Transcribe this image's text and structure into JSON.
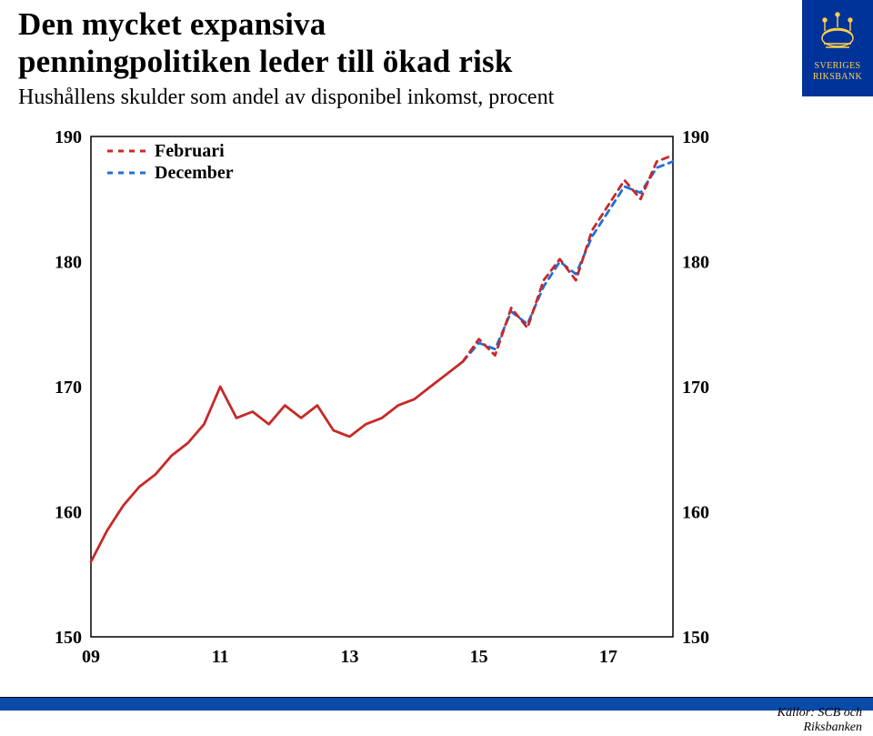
{
  "title_line1": "Den mycket expansiva",
  "title_line2": "penningpolitiken leder till ökad risk",
  "subtitle": "Hushållens skulder som andel av disponibel inkomst, procent",
  "logo": {
    "line1": "SVERIGES",
    "line2": "RIKSBANK",
    "bg": "#003399",
    "fg": "#ffd24a"
  },
  "footer": {
    "bar_color": "#0a4aa8",
    "sources_line1": "Källor: SCB och",
    "sources_line2": "Riksbanken"
  },
  "chart": {
    "type": "line",
    "background_color": "#ffffff",
    "axis_color": "#000000",
    "axis_linewidth": 1.5,
    "xlim": [
      2009,
      2018
    ],
    "ylim": [
      150,
      190
    ],
    "xticks": [
      2009,
      2011,
      2013,
      2015,
      2017
    ],
    "xtick_labels": [
      "09",
      "11",
      "13",
      "15",
      "17"
    ],
    "yticks": [
      150,
      160,
      170,
      180,
      190
    ],
    "ytick_labels_left": [
      "150",
      "160",
      "170",
      "180",
      "190"
    ],
    "ytick_labels_right": [
      "150",
      "160",
      "170",
      "180",
      "190"
    ],
    "tick_fontsize": 20,
    "tick_fontweight": "700",
    "grid": false,
    "legend": {
      "position": "top-left-inside",
      "items": [
        {
          "label": "Februari",
          "color": "#c82828",
          "dash": "6,6",
          "width": 3
        },
        {
          "label": "December",
          "color": "#1e6fd9",
          "dash": "6,6",
          "width": 3
        }
      ],
      "fontsize": 20
    },
    "series": [
      {
        "name": "solid-history",
        "color": "#c82828",
        "width": 2.8,
        "dash": "none",
        "x": [
          2009.0,
          2009.25,
          2009.5,
          2009.75,
          2010.0,
          2010.25,
          2010.5,
          2010.75,
          2011.0,
          2011.25,
          2011.5,
          2011.75,
          2012.0,
          2012.25,
          2012.5,
          2012.75,
          2013.0,
          2013.25,
          2013.5,
          2013.75,
          2014.0,
          2014.25,
          2014.5,
          2014.75
        ],
        "y": [
          156.0,
          158.5,
          160.5,
          162.0,
          163.0,
          164.5,
          165.5,
          167.0,
          170.0,
          167.5,
          168.0,
          167.0,
          168.5,
          167.5,
          168.5,
          166.5,
          166.0,
          167.0,
          167.5,
          168.5,
          169.0,
          170.0,
          171.0,
          172.0
        ]
      },
      {
        "name": "december-forecast",
        "color": "#1e6fd9",
        "width": 2.8,
        "dash": "7,6",
        "x": [
          2014.75,
          2015.0,
          2015.25,
          2015.5,
          2015.75,
          2016.0,
          2016.25,
          2016.5,
          2016.75,
          2017.0,
          2017.25,
          2017.5,
          2017.75,
          2018.0
        ],
        "y": [
          172.0,
          173.5,
          173.0,
          176.0,
          175.0,
          178.0,
          180.0,
          179.0,
          182.0,
          184.0,
          186.0,
          185.5,
          187.5,
          188.0
        ]
      },
      {
        "name": "februari-forecast",
        "color": "#c82828",
        "width": 2.8,
        "dash": "7,6",
        "x": [
          2014.75,
          2015.0,
          2015.25,
          2015.5,
          2015.75,
          2016.0,
          2016.25,
          2016.5,
          2016.75,
          2017.0,
          2017.25,
          2017.5,
          2017.75,
          2018.0
        ],
        "y": [
          172.0,
          173.8,
          172.5,
          176.3,
          174.7,
          178.5,
          180.2,
          178.5,
          182.5,
          184.5,
          186.5,
          185.0,
          188.0,
          188.5
        ]
      }
    ]
  }
}
